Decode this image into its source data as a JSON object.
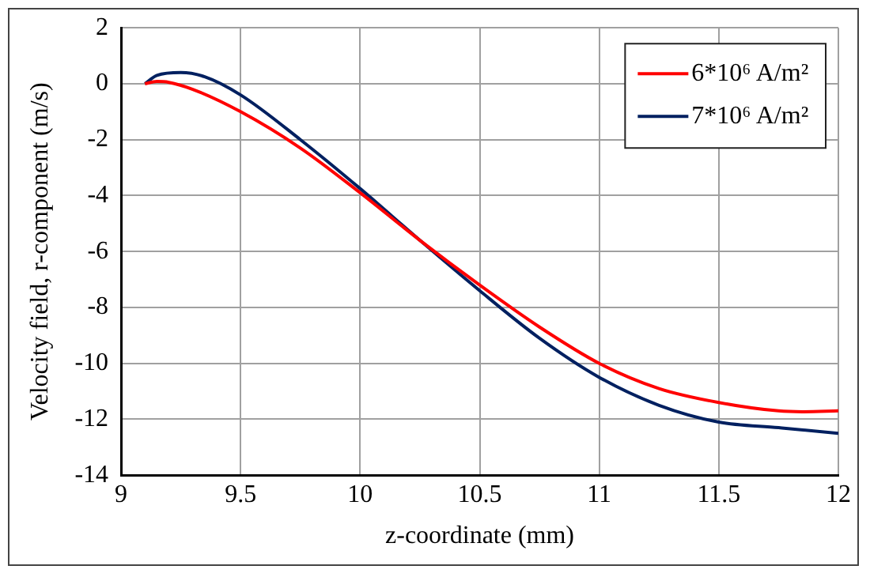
{
  "chart_data": {
    "type": "line",
    "xlabel": "z-coordinate (mm)",
    "ylabel": "Velocity field, r-component (m/s)",
    "xlim": [
      9,
      12
    ],
    "xticks": [
      9,
      9.5,
      10,
      10.5,
      11,
      11.5,
      12
    ],
    "ylim": [
      -14,
      2
    ],
    "yticks": [
      2,
      0,
      -2,
      -4,
      -6,
      -8,
      -10,
      -12,
      -14
    ],
    "grid": true,
    "legend": "top right",
    "marker": "none",
    "line_style": "solid",
    "series": [
      {
        "name": "6*10⁶ A/m²",
        "color": "#ff0000",
        "x": [
          9.1,
          9.15,
          9.2,
          9.3,
          9.5,
          9.75,
          10,
          10.25,
          10.5,
          10.75,
          11,
          11.25,
          11.5,
          11.75,
          11.85,
          12
        ],
        "values": [
          0,
          0.08,
          0.05,
          -0.2,
          -1.0,
          -2.3,
          -3.9,
          -5.6,
          -7.2,
          -8.7,
          -10.0,
          -10.9,
          -11.4,
          -11.7,
          -11.73,
          -11.7
        ]
      },
      {
        "name": "7*10⁶ A/m²",
        "color": "#002060",
        "x": [
          9.1,
          9.15,
          9.25,
          9.35,
          9.5,
          9.75,
          10,
          10.25,
          10.5,
          10.75,
          11,
          11.25,
          11.5,
          11.75,
          12
        ],
        "values": [
          0,
          0.3,
          0.4,
          0.25,
          -0.4,
          -2.0,
          -3.75,
          -5.6,
          -7.4,
          -9.1,
          -10.5,
          -11.5,
          -12.1,
          -12.3,
          -12.5
        ]
      }
    ]
  }
}
